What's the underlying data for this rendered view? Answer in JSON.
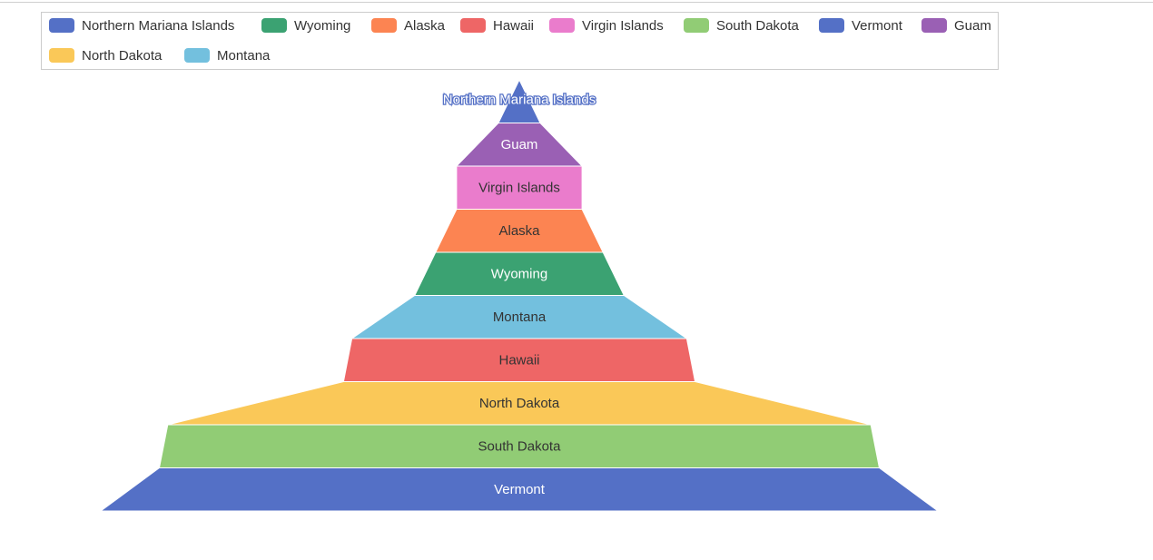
{
  "chart_data": {
    "type": "funnel",
    "order": "ascending",
    "legend_position": "top",
    "series": [
      {
        "name": "Northern Mariana Islands",
        "value": 5,
        "color": "#5470c6",
        "label_color": "#ffffff"
      },
      {
        "name": "Guam",
        "value": 15,
        "color": "#9a60b4",
        "label_color": "#ffffff"
      },
      {
        "name": "Virgin Islands",
        "value": 15,
        "color": "#ea7ccc",
        "label_color": "#333333"
      },
      {
        "name": "Alaska",
        "value": 20,
        "color": "#fc8452",
        "label_color": "#333333"
      },
      {
        "name": "Wyoming",
        "value": 25,
        "color": "#3ba272",
        "label_color": "#ffffff"
      },
      {
        "name": "Montana",
        "value": 40,
        "color": "#73c0de",
        "label_color": "#333333"
      },
      {
        "name": "Hawaii",
        "value": 42,
        "color": "#ee6666",
        "label_color": "#333333"
      },
      {
        "name": "North Dakota",
        "value": 84,
        "color": "#fac858",
        "label_color": "#333333"
      },
      {
        "name": "South Dakota",
        "value": 86,
        "color": "#91cc75",
        "label_color": "#333333"
      },
      {
        "name": "Vermont",
        "value": 100,
        "color": "#5470c6",
        "label_color": "#ffffff"
      }
    ],
    "legend": [
      {
        "name": "Northern Mariana Islands",
        "color": "#5470c6"
      },
      {
        "name": "Wyoming",
        "color": "#3ba272"
      },
      {
        "name": "Alaska",
        "color": "#fc8452"
      },
      {
        "name": "Hawaii",
        "color": "#ee6666"
      },
      {
        "name": "Virgin Islands",
        "color": "#ea7ccc"
      },
      {
        "name": "South Dakota",
        "color": "#91cc75"
      },
      {
        "name": "Vermont",
        "color": "#5470c6"
      },
      {
        "name": "Guam",
        "color": "#9a60b4"
      },
      {
        "name": "North Dakota",
        "color": "#fac858"
      },
      {
        "name": "Montana",
        "color": "#73c0de"
      }
    ]
  }
}
